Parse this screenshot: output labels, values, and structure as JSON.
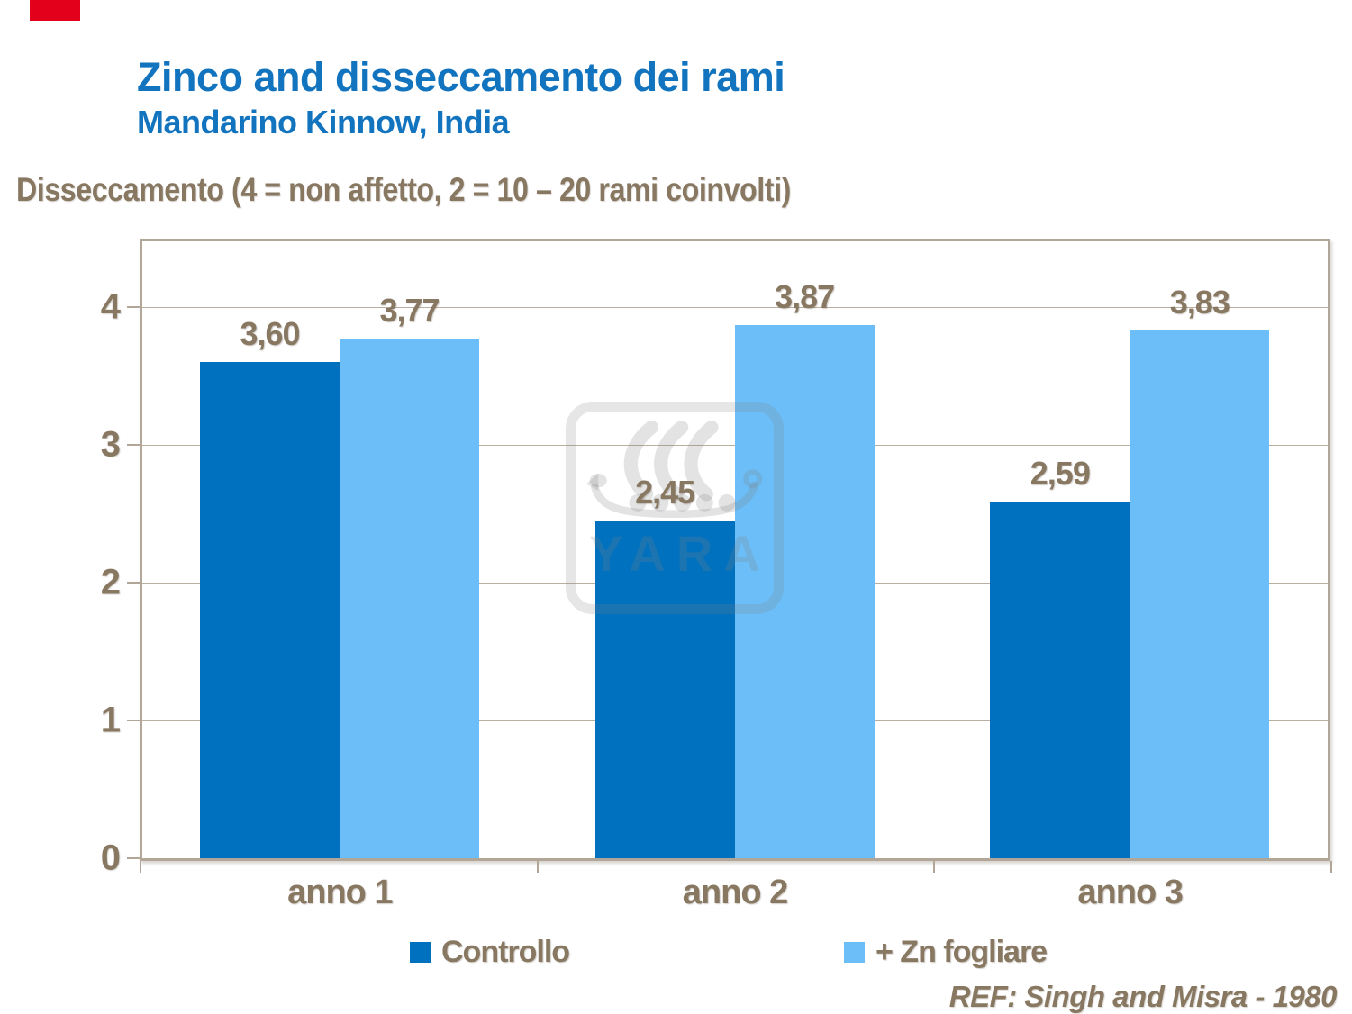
{
  "slide": {
    "title": "Zinco and disseccamento dei rami",
    "subtitle": "Mandarino Kinnow, India",
    "axis_note": "Disseccamento (4 = non affetto, 2 = 10 – 20 rami coinvolti)",
    "reference": "REF: Singh and Misra - 1980",
    "watermark": "YARA"
  },
  "colors": {
    "title_blue": "#1274BE",
    "text_brown": "#887862",
    "axis_line": "#B1A697",
    "gridline": "#BAAF9F",
    "series1": "#0071BF",
    "series2": "#6BBEF8",
    "red_marker": "#E2001A"
  },
  "chart_data": {
    "type": "bar",
    "title": "Disseccamento (4 = non affetto, 2 = 10 – 20 rami coinvolti)",
    "categories": [
      "anno 1",
      "anno 2",
      "anno 3"
    ],
    "series": [
      {
        "name": "Controllo",
        "color": "#0071BF",
        "values": [
          3.6,
          2.45,
          2.59
        ],
        "labels": [
          "3,60",
          "2,45",
          "2,59"
        ]
      },
      {
        "name": "+ Zn fogliare",
        "color": "#6BBEF8",
        "values": [
          3.77,
          3.87,
          3.83
        ],
        "labels": [
          "3,77",
          "3,87",
          "3,83"
        ]
      }
    ],
    "xlabel": "",
    "ylabel": "",
    "ylim": [
      0,
      4.5
    ],
    "yticks": [
      0,
      1,
      2,
      3,
      4
    ],
    "grid": true,
    "legend_position": "bottom",
    "reference": "REF: Singh and Misra - 1980"
  }
}
